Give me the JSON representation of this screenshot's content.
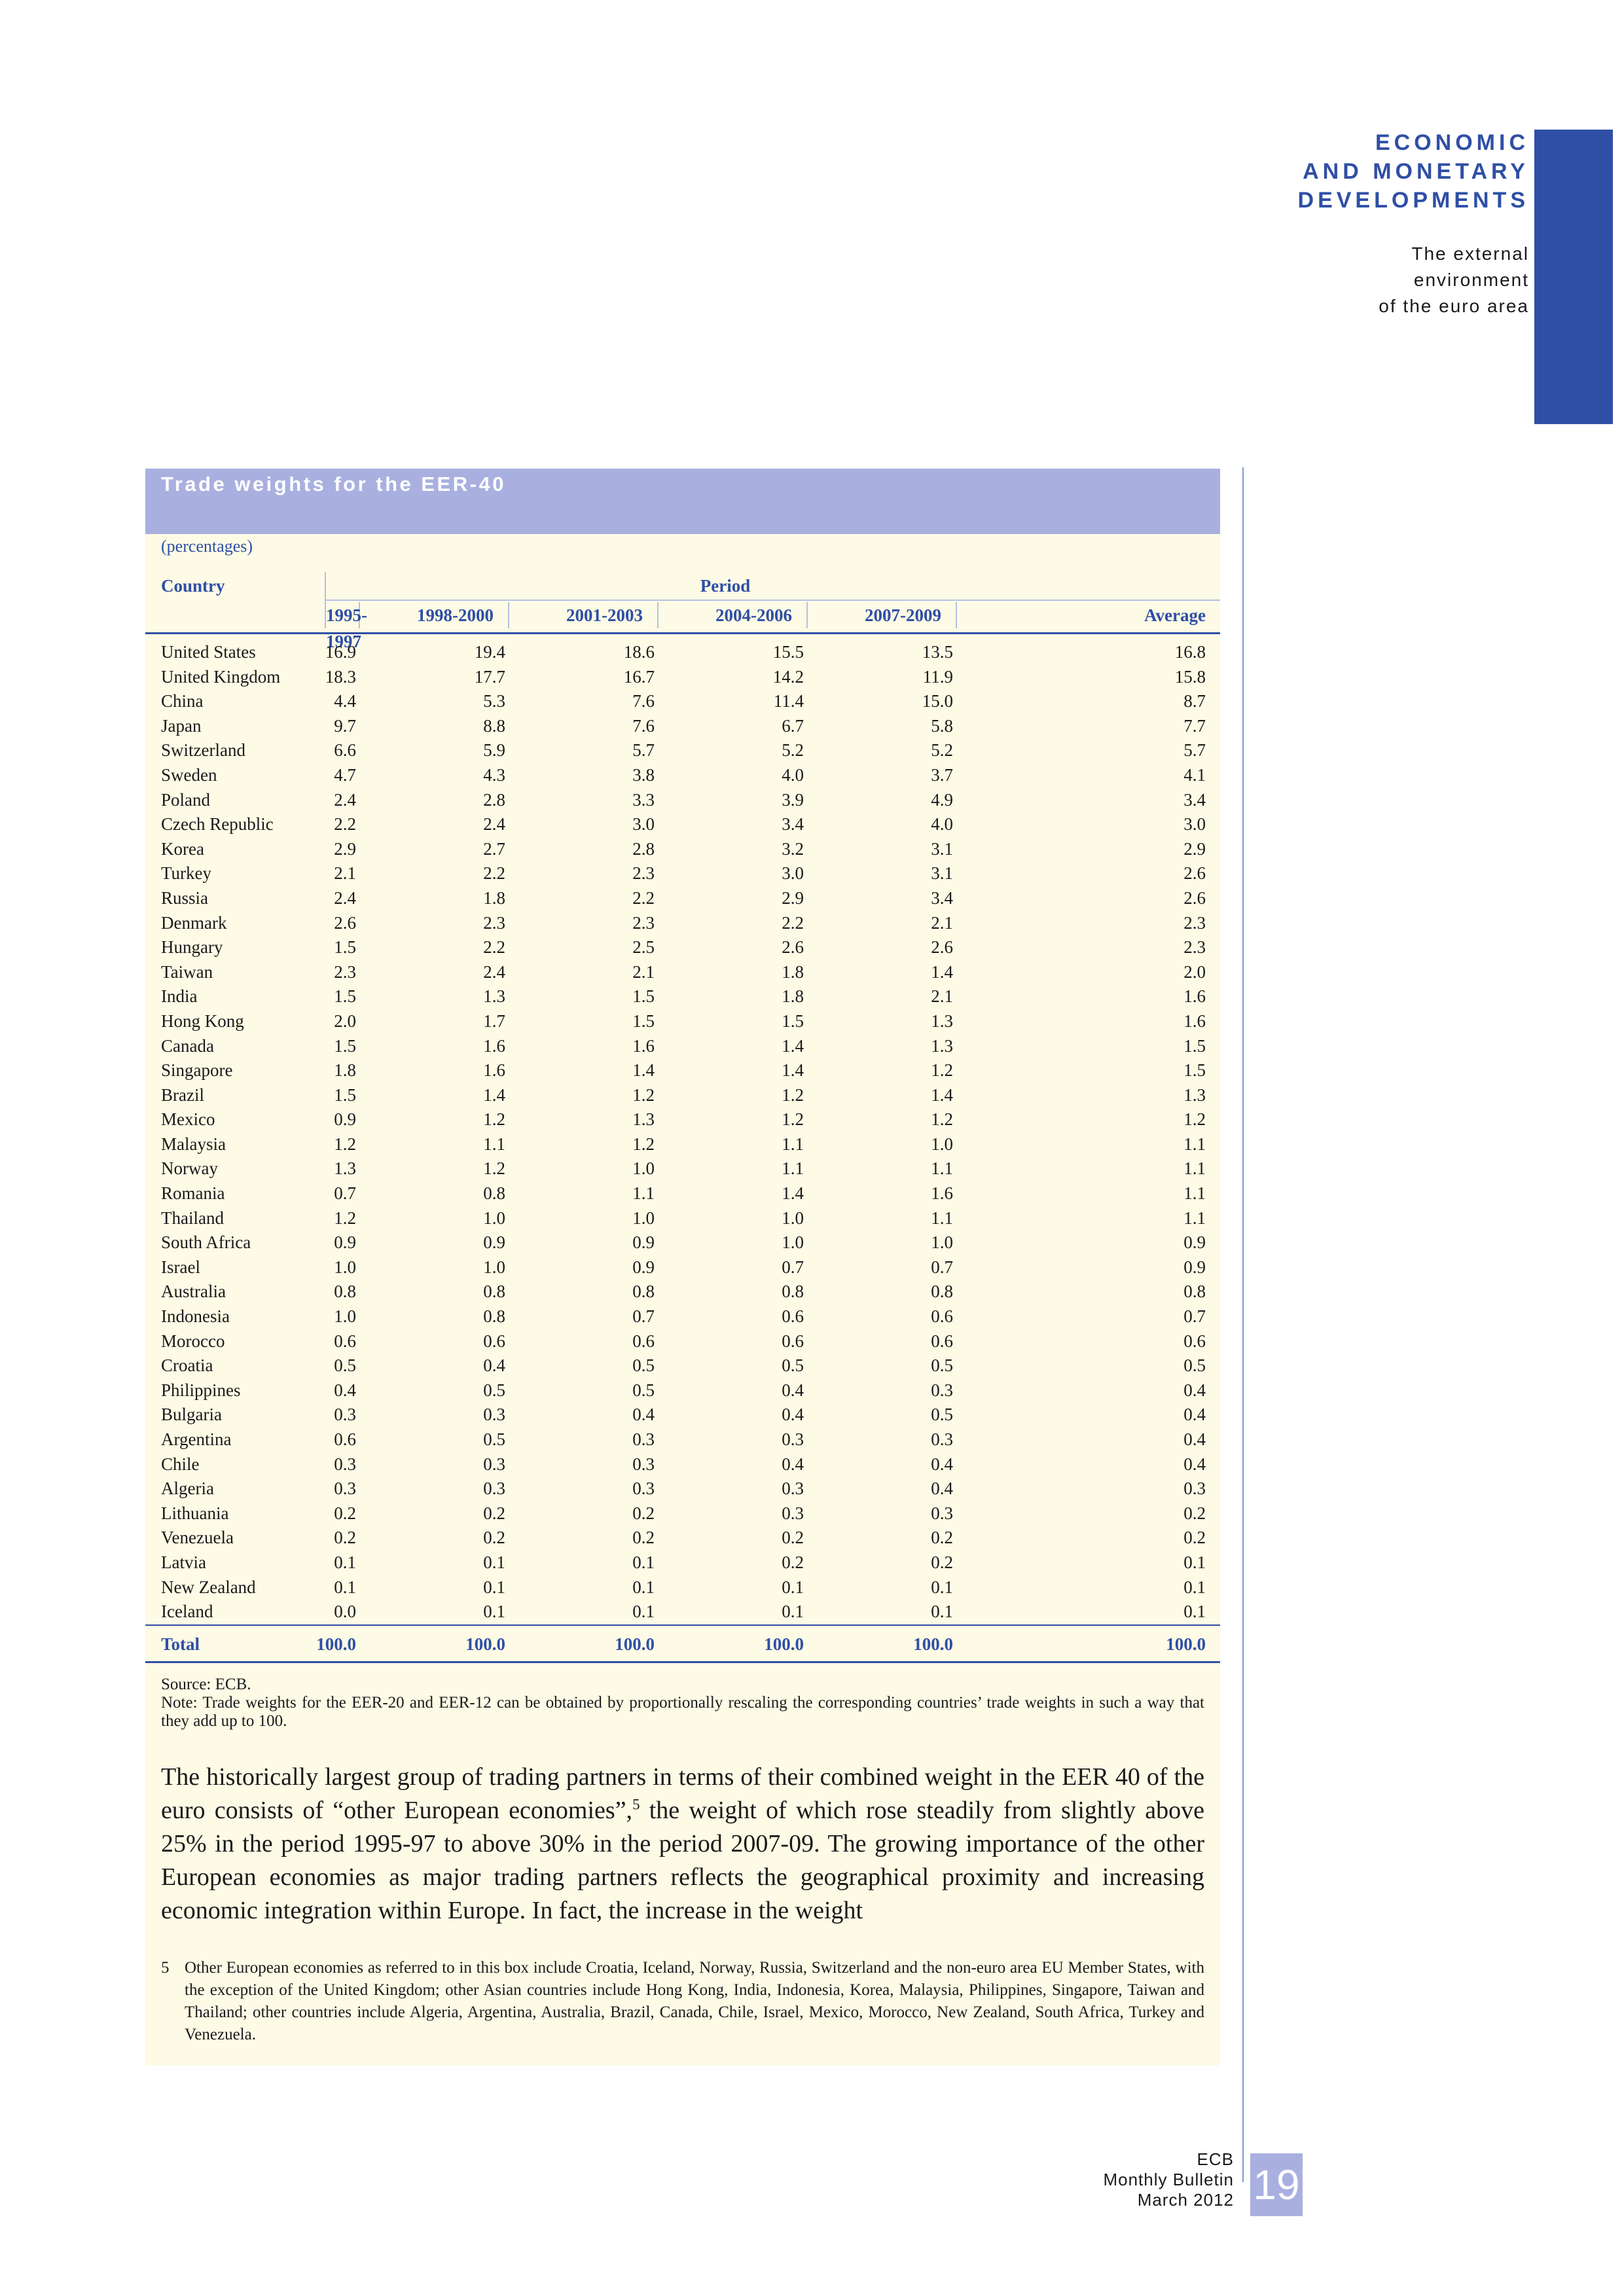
{
  "header": {
    "section_title_lines": [
      "ECONOMIC",
      "AND MONETARY",
      "DEVELOPMENTS"
    ],
    "subsection_lines": [
      "The external",
      "environment",
      "of the euro area"
    ]
  },
  "box": {
    "title": "Trade weights for the EER-40",
    "units": "(percentages)",
    "country_header": "Country",
    "period_header": "Period",
    "columns": [
      "1995-1997",
      "1998-2000",
      "2001-2003",
      "2004-2006",
      "2007-2009",
      "Average"
    ],
    "rows": [
      [
        "United States",
        "16.9",
        "19.4",
        "18.6",
        "15.5",
        "13.5",
        "16.8"
      ],
      [
        "United Kingdom",
        "18.3",
        "17.7",
        "16.7",
        "14.2",
        "11.9",
        "15.8"
      ],
      [
        "China",
        "4.4",
        "5.3",
        "7.6",
        "11.4",
        "15.0",
        "8.7"
      ],
      [
        "Japan",
        "9.7",
        "8.8",
        "7.6",
        "6.7",
        "5.8",
        "7.7"
      ],
      [
        "Switzerland",
        "6.6",
        "5.9",
        "5.7",
        "5.2",
        "5.2",
        "5.7"
      ],
      [
        "Sweden",
        "4.7",
        "4.3",
        "3.8",
        "4.0",
        "3.7",
        "4.1"
      ],
      [
        "Poland",
        "2.4",
        "2.8",
        "3.3",
        "3.9",
        "4.9",
        "3.4"
      ],
      [
        "Czech Republic",
        "2.2",
        "2.4",
        "3.0",
        "3.4",
        "4.0",
        "3.0"
      ],
      [
        "Korea",
        "2.9",
        "2.7",
        "2.8",
        "3.2",
        "3.1",
        "2.9"
      ],
      [
        "Turkey",
        "2.1",
        "2.2",
        "2.3",
        "3.0",
        "3.1",
        "2.6"
      ],
      [
        "Russia",
        "2.4",
        "1.8",
        "2.2",
        "2.9",
        "3.4",
        "2.6"
      ],
      [
        "Denmark",
        "2.6",
        "2.3",
        "2.3",
        "2.2",
        "2.1",
        "2.3"
      ],
      [
        "Hungary",
        "1.5",
        "2.2",
        "2.5",
        "2.6",
        "2.6",
        "2.3"
      ],
      [
        "Taiwan",
        "2.3",
        "2.4",
        "2.1",
        "1.8",
        "1.4",
        "2.0"
      ],
      [
        "India",
        "1.5",
        "1.3",
        "1.5",
        "1.8",
        "2.1",
        "1.6"
      ],
      [
        "Hong Kong",
        "2.0",
        "1.7",
        "1.5",
        "1.5",
        "1.3",
        "1.6"
      ],
      [
        "Canada",
        "1.5",
        "1.6",
        "1.6",
        "1.4",
        "1.3",
        "1.5"
      ],
      [
        "Singapore",
        "1.8",
        "1.6",
        "1.4",
        "1.4",
        "1.2",
        "1.5"
      ],
      [
        "Brazil",
        "1.5",
        "1.4",
        "1.2",
        "1.2",
        "1.4",
        "1.3"
      ],
      [
        "Mexico",
        "0.9",
        "1.2",
        "1.3",
        "1.2",
        "1.2",
        "1.2"
      ],
      [
        "Malaysia",
        "1.2",
        "1.1",
        "1.2",
        "1.1",
        "1.0",
        "1.1"
      ],
      [
        "Norway",
        "1.3",
        "1.2",
        "1.0",
        "1.1",
        "1.1",
        "1.1"
      ],
      [
        "Romania",
        "0.7",
        "0.8",
        "1.1",
        "1.4",
        "1.6",
        "1.1"
      ],
      [
        "Thailand",
        "1.2",
        "1.0",
        "1.0",
        "1.0",
        "1.1",
        "1.1"
      ],
      [
        "South Africa",
        "0.9",
        "0.9",
        "0.9",
        "1.0",
        "1.0",
        "0.9"
      ],
      [
        "Israel",
        "1.0",
        "1.0",
        "0.9",
        "0.7",
        "0.7",
        "0.9"
      ],
      [
        "Australia",
        "0.8",
        "0.8",
        "0.8",
        "0.8",
        "0.8",
        "0.8"
      ],
      [
        "Indonesia",
        "1.0",
        "0.8",
        "0.7",
        "0.6",
        "0.6",
        "0.7"
      ],
      [
        "Morocco",
        "0.6",
        "0.6",
        "0.6",
        "0.6",
        "0.6",
        "0.6"
      ],
      [
        "Croatia",
        "0.5",
        "0.4",
        "0.5",
        "0.5",
        "0.5",
        "0.5"
      ],
      [
        "Philippines",
        "0.4",
        "0.5",
        "0.5",
        "0.4",
        "0.3",
        "0.4"
      ],
      [
        "Bulgaria",
        "0.3",
        "0.3",
        "0.4",
        "0.4",
        "0.5",
        "0.4"
      ],
      [
        "Argentina",
        "0.6",
        "0.5",
        "0.3",
        "0.3",
        "0.3",
        "0.4"
      ],
      [
        "Chile",
        "0.3",
        "0.3",
        "0.3",
        "0.4",
        "0.4",
        "0.4"
      ],
      [
        "Algeria",
        "0.3",
        "0.3",
        "0.3",
        "0.3",
        "0.4",
        "0.3"
      ],
      [
        "Lithuania",
        "0.2",
        "0.2",
        "0.2",
        "0.3",
        "0.3",
        "0.2"
      ],
      [
        "Venezuela",
        "0.2",
        "0.2",
        "0.2",
        "0.2",
        "0.2",
        "0.2"
      ],
      [
        "Latvia",
        "0.1",
        "0.1",
        "0.1",
        "0.2",
        "0.2",
        "0.1"
      ],
      [
        "New Zealand",
        "0.1",
        "0.1",
        "0.1",
        "0.1",
        "0.1",
        "0.1"
      ],
      [
        "Iceland",
        "0.0",
        "0.1",
        "0.1",
        "0.1",
        "0.1",
        "0.1"
      ]
    ],
    "total_row": [
      "Total",
      "100.0",
      "100.0",
      "100.0",
      "100.0",
      "100.0",
      "100.0"
    ],
    "source": "Source: ECB.",
    "note": "Note: Trade weights for the EER-20 and EER-12 can be obtained by proportionally rescaling the corresponding countries’ trade weights in such a way that they add up to 100."
  },
  "body": {
    "paragraph_before_sup": "The historically largest group of trading partners in terms of their combined weight in the EER 40 of the euro consists of “other European economies”,",
    "sup": "5",
    "paragraph_after_sup": " the weight of which rose steadily from slightly above 25% in the period 1995-97 to above 30% in the period 2007-09. The growing importance of the other European economies as major trading partners reflects the geographical proximity and increasing economic integration within Europe. In fact, the increase in the weight"
  },
  "footnote": {
    "number": "5",
    "text": "Other European economies as referred to in this box include Croatia, Iceland, Norway, Russia, Switzerland and the non-euro area EU Member States, with the exception of the United Kingdom; other Asian countries include Hong Kong, India, Indonesia, Korea, Malaysia, Philippines, Singapore, Taiwan and Thailand; other countries include Algeria, Argentina, Australia, Brazil, Canada, Chile, Israel, Mexico, Morocco, New Zealand, South Africa, Turkey and Venezuela."
  },
  "footer": {
    "lines": [
      "ECB",
      "Monthly Bulletin",
      "March 2012"
    ],
    "page_number": "19"
  },
  "colors": {
    "accent": "#2f4fa6",
    "box_header": "#a9b0e0",
    "box_background": "#fdfbe6"
  }
}
